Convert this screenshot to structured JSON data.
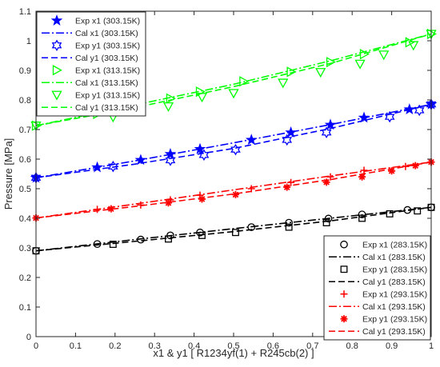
{
  "chart_data": {
    "type": "scatter",
    "xlabel": "x1 & y1 [ R1234yf(1) + R245cb(2) ]",
    "ylabel": "Pressure [MPa]",
    "xlim": [
      0,
      1
    ],
    "ylim": [
      0,
      1.1
    ],
    "x_ticks": [
      "0",
      "0.1",
      "0.2",
      "0.3",
      "0.4",
      "0.5",
      "0.6",
      "0.7",
      "0.8",
      "0.9",
      "1"
    ],
    "y_ticks": [
      "0",
      "0.1",
      "0.2",
      "0.3",
      "0.4",
      "0.5",
      "0.6",
      "0.7",
      "0.8",
      "0.9",
      "1",
      "1.1"
    ],
    "grid": false,
    "legends": [
      {
        "placement": "top-left",
        "entries": [
          "Exp x1 (303.15K)",
          "Cal x1 (303.15K)",
          "Exp y1 (303.15K)",
          "Cal y1 (303.15K)",
          "Exp x1 (313.15K)",
          "Cal x1 (313.15K)",
          "Exp y1 (313.15K)",
          "Cal y1 (313.15K)"
        ]
      },
      {
        "placement": "bottom-right",
        "entries": [
          "Exp x1 (283.15K)",
          "Cal x1 (283.15K)",
          "Exp y1 (283.15K)",
          "Cal y1 (283.15K)",
          "Exp x1 (293.15K)",
          "Cal x1 (293.15K)",
          "Exp y1 (293.15K)",
          "Cal y1 (293.15K)"
        ]
      }
    ],
    "series": [
      {
        "name": "Exp x1 (303.15K)",
        "kind": "markers",
        "marker": "star-filled",
        "color": "#0000ff",
        "x": [
          0,
          0.155,
          0.265,
          0.34,
          0.415,
          0.545,
          0.645,
          0.745,
          0.83,
          0.945,
          1.0
        ],
        "y": [
          0.537,
          0.572,
          0.597,
          0.617,
          0.634,
          0.665,
          0.69,
          0.716,
          0.74,
          0.768,
          0.785
        ]
      },
      {
        "name": "Cal x1 (303.15K)",
        "kind": "line",
        "dash": "dashdot",
        "color": "#0000ff",
        "x": [
          0,
          0.25,
          0.5,
          0.75,
          1.0
        ],
        "y": [
          0.537,
          0.594,
          0.655,
          0.718,
          0.785
        ]
      },
      {
        "name": "Exp y1 (303.15K)",
        "kind": "markers",
        "marker": "hexagram-open",
        "color": "#0000ff",
        "x": [
          0,
          0.195,
          0.34,
          0.425,
          0.505,
          0.635,
          0.735,
          0.895,
          0.97,
          1.0
        ],
        "y": [
          0.537,
          0.575,
          0.596,
          0.614,
          0.632,
          0.665,
          0.69,
          0.743,
          0.765,
          0.785
        ]
      },
      {
        "name": "Cal y1 (303.15K)",
        "kind": "line",
        "dash": "dash",
        "color": "#0000ff",
        "x": [
          0,
          0.25,
          0.5,
          0.75,
          1.0
        ],
        "y": [
          0.537,
          0.583,
          0.636,
          0.705,
          0.785
        ]
      },
      {
        "name": "Exp x1 (313.15K)",
        "kind": "markers",
        "marker": "triangle-right",
        "color": "#00ff00",
        "x": [
          0,
          0.155,
          0.265,
          0.34,
          0.415,
          0.525,
          0.645,
          0.745,
          0.83,
          0.945,
          1.0
        ],
        "y": [
          0.713,
          0.753,
          0.778,
          0.805,
          0.828,
          0.863,
          0.895,
          0.928,
          0.955,
          0.995,
          1.023
        ]
      },
      {
        "name": "Cal x1 (313.15K)",
        "kind": "line",
        "dash": "dashdot",
        "color": "#00ff00",
        "x": [
          0,
          0.25,
          0.5,
          0.75,
          1.0
        ],
        "y": [
          0.713,
          0.783,
          0.853,
          0.934,
          1.023
        ]
      },
      {
        "name": "Exp y1 (313.15K)",
        "kind": "markers",
        "marker": "triangle-down",
        "color": "#00ff00",
        "x": [
          0,
          0.195,
          0.335,
          0.42,
          0.5,
          0.625,
          0.72,
          0.82,
          0.88,
          0.955,
          1.0
        ],
        "y": [
          0.713,
          0.742,
          0.778,
          0.81,
          0.823,
          0.858,
          0.894,
          0.922,
          0.953,
          0.985,
          1.023
        ]
      },
      {
        "name": "Cal y1 (313.15K)",
        "kind": "line",
        "dash": "dash",
        "color": "#00ff00",
        "x": [
          0,
          0.25,
          0.5,
          0.75,
          1.0
        ],
        "y": [
          0.713,
          0.774,
          0.845,
          0.925,
          1.023
        ]
      },
      {
        "name": "Exp x1 (283.15K)",
        "kind": "markers",
        "marker": "circle-open",
        "color": "#000000",
        "x": [
          0,
          0.155,
          0.265,
          0.34,
          0.415,
          0.545,
          0.64,
          0.74,
          0.825,
          0.94,
          1.0
        ],
        "y": [
          0.29,
          0.313,
          0.328,
          0.342,
          0.352,
          0.37,
          0.385,
          0.399,
          0.413,
          0.428,
          0.437
        ]
      },
      {
        "name": "Cal x1 (283.15K)",
        "kind": "line",
        "dash": "dashdot",
        "color": "#000000",
        "x": [
          0,
          0.25,
          0.5,
          0.75,
          1.0
        ],
        "y": [
          0.29,
          0.328,
          0.365,
          0.401,
          0.437
        ]
      },
      {
        "name": "Exp y1 (283.15K)",
        "kind": "markers",
        "marker": "square-open",
        "color": "#000000",
        "x": [
          0,
          0.195,
          0.335,
          0.42,
          0.505,
          0.64,
          0.735,
          0.825,
          0.895,
          0.965,
          1.0
        ],
        "y": [
          0.29,
          0.312,
          0.33,
          0.342,
          0.352,
          0.37,
          0.385,
          0.4,
          0.415,
          0.425,
          0.437
        ]
      },
      {
        "name": "Cal y1 (283.15K)",
        "kind": "line",
        "dash": "dash",
        "color": "#000000",
        "x": [
          0,
          0.25,
          0.5,
          0.75,
          1.0
        ],
        "y": [
          0.29,
          0.322,
          0.355,
          0.392,
          0.437
        ]
      },
      {
        "name": "Exp x1 (293.15K)",
        "kind": "markers",
        "marker": "plus",
        "color": "#ff0000",
        "x": [
          0,
          0.155,
          0.265,
          0.34,
          0.415,
          0.545,
          0.645,
          0.745,
          0.83,
          0.935,
          1.0
        ],
        "y": [
          0.401,
          0.43,
          0.445,
          0.462,
          0.478,
          0.5,
          0.521,
          0.54,
          0.562,
          0.575,
          0.59
        ]
      },
      {
        "name": "Cal x1 (293.15K)",
        "kind": "line",
        "dash": "dashdot",
        "color": "#ff0000",
        "x": [
          0,
          0.25,
          0.5,
          0.75,
          1.0
        ],
        "y": [
          0.401,
          0.448,
          0.496,
          0.544,
          0.59
        ]
      },
      {
        "name": "Exp y1 (293.15K)",
        "kind": "markers",
        "marker": "asterisk",
        "color": "#ff0000",
        "x": [
          0,
          0.19,
          0.335,
          0.42,
          0.505,
          0.635,
          0.735,
          0.825,
          0.9,
          0.96,
          1.0
        ],
        "y": [
          0.401,
          0.432,
          0.452,
          0.465,
          0.48,
          0.505,
          0.522,
          0.54,
          0.56,
          0.578,
          0.59
        ]
      },
      {
        "name": "Cal y1 (293.15K)",
        "kind": "line",
        "dash": "dash",
        "color": "#ff0000",
        "x": [
          0,
          0.25,
          0.5,
          0.75,
          1.0
        ],
        "y": [
          0.401,
          0.44,
          0.482,
          0.532,
          0.59
        ]
      }
    ]
  }
}
